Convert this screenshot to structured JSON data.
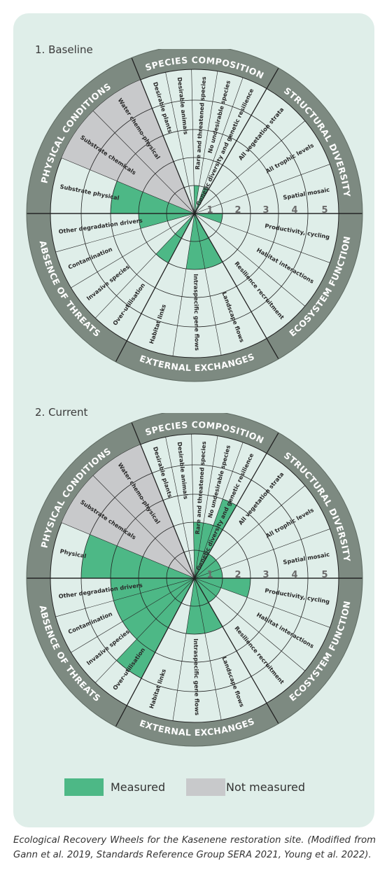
{
  "colors": {
    "card": "#dfeee9",
    "ring": "#7d8a81",
    "measured": "#4db886",
    "not_measured": "#c8c9cb",
    "line": "#222222",
    "ring_text": "#ffffff"
  },
  "scale_labels": [
    "1",
    "2",
    "3",
    "4",
    "5"
  ],
  "categories": [
    {
      "name": "SPECIES COMPOSITION",
      "attributes": [
        "Desirable plants",
        "Desirable animals",
        "Rare and threatened species",
        "No undesirable species",
        "Genetic diversity and genetic resilience"
      ]
    },
    {
      "name": "STRUCTURAL DIVERSITY",
      "attributes": [
        "All vegetation strata",
        "All trophic levels",
        "Spatial mosaic"
      ]
    },
    {
      "name": "ECOSYSTEM FUNCTION",
      "attributes": [
        "Productivity, cycling",
        "Habitat interactions",
        "Resilience recruitment"
      ]
    },
    {
      "name": "EXTERNAL EXCHANGES",
      "attributes": [
        "Landscape flows",
        "Intraspecific gene flows",
        "Habitat links"
      ]
    },
    {
      "name": "ABSENCE OF THREATS",
      "attributes": [
        "Over-utilisation",
        "Invasive species",
        "Contamination",
        "Other degradation drivers"
      ]
    },
    {
      "name": "PHYSICAL CONDITIONS",
      "attributes": [
        "Substrate physical",
        "Substrate chemicals",
        "Water chemo-physical"
      ]
    }
  ],
  "wheels": [
    {
      "title": "1. Baseline",
      "attribute_labels": [
        "Desirable plants",
        "Desirable animals",
        "Rare and threatened species",
        "No undesirable species",
        "Genetic diversity and genetic resilience",
        "All vegetation strata",
        "All trophic levels",
        "Spatial mosaic",
        "Productivity, cycling",
        "Habitat interactions",
        "Resilience recruitment",
        "Landscape flows",
        "Intraspecific gene flows",
        "Habitat links",
        "Over-utilisation",
        "Invasive species",
        "Contamination",
        "Other degradation drivers",
        "Substrate physical",
        "Substrate chemicals",
        "Water chemo-physical"
      ],
      "scores": [
        0,
        0,
        1,
        0,
        1,
        0,
        0,
        0,
        1,
        0,
        0,
        2,
        2,
        0,
        2,
        0,
        0,
        2,
        3,
        null,
        null
      ]
    },
    {
      "title": "2. Current",
      "attribute_labels": [
        "Desirable plants",
        "Desirable animals",
        "Rare and threatened species",
        "No undesirable species",
        "Genetic diversity and genetic resilience",
        "All vegetation strata",
        "All trophic levels",
        "Spatial mosaic",
        "Productivity, cycling",
        "Habitat interactions",
        "Resilience recruitment",
        "Landscape flows",
        "Intraspecific gene flows",
        "Habitat links",
        "Over-utilisation",
        "Invasive species",
        "Contamination",
        "Other degradation drivers",
        "Physical",
        "Substrate chemicals",
        "Water chemo-physical"
      ],
      "scores": [
        0,
        0,
        2,
        2,
        3,
        1,
        1,
        1,
        2,
        1,
        1,
        2,
        2,
        0,
        4,
        3,
        3,
        3,
        4,
        null,
        null
      ]
    }
  ],
  "legend": {
    "measured_label": "Measured",
    "not_measured_label": "Not measured"
  },
  "caption": "Ecological Recovery Wheels for the Kasenene restoration site. (Modified from Gann et al. 2019, Standards Reference Group SERA 2021, Young et al. 2022)."
}
